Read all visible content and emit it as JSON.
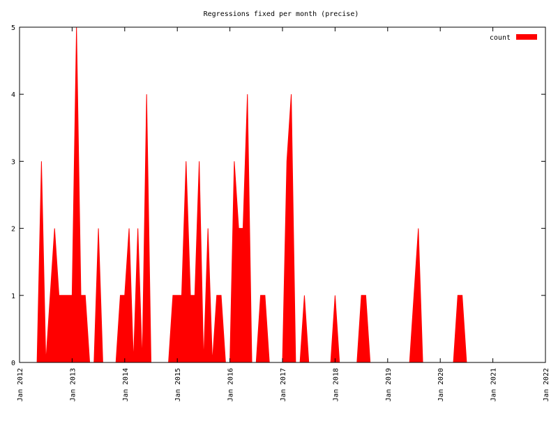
{
  "chart_data": {
    "type": "area",
    "title": "Regressions fixed per month (precise)",
    "x": [
      "2012-01",
      "2012-02",
      "2012-03",
      "2012-04",
      "2012-05",
      "2012-06",
      "2012-07",
      "2012-08",
      "2012-09",
      "2012-10",
      "2012-11",
      "2012-12",
      "2013-01",
      "2013-02",
      "2013-03",
      "2013-04",
      "2013-05",
      "2013-06",
      "2013-07",
      "2013-08",
      "2013-09",
      "2013-10",
      "2013-11",
      "2013-12",
      "2014-01",
      "2014-02",
      "2014-03",
      "2014-04",
      "2014-05",
      "2014-06",
      "2014-07",
      "2014-08",
      "2014-09",
      "2014-10",
      "2014-11",
      "2014-12",
      "2015-01",
      "2015-02",
      "2015-03",
      "2015-04",
      "2015-05",
      "2015-06",
      "2015-07",
      "2015-08",
      "2015-09",
      "2015-10",
      "2015-11",
      "2015-12",
      "2016-01",
      "2016-02",
      "2016-03",
      "2016-04",
      "2016-05",
      "2016-06",
      "2016-07",
      "2016-08",
      "2016-09",
      "2016-10",
      "2016-11",
      "2016-12",
      "2017-01",
      "2017-02",
      "2017-03",
      "2017-04",
      "2017-05",
      "2017-06",
      "2017-07",
      "2017-08",
      "2017-09",
      "2017-10",
      "2017-11",
      "2017-12",
      "2018-01",
      "2018-02",
      "2018-03",
      "2018-04",
      "2018-05",
      "2018-06",
      "2018-07",
      "2018-08",
      "2018-09",
      "2018-10",
      "2018-11",
      "2018-12",
      "2019-01",
      "2019-02",
      "2019-03",
      "2019-04",
      "2019-05",
      "2019-06",
      "2019-07",
      "2019-08",
      "2019-09",
      "2019-10",
      "2019-11",
      "2019-12",
      "2020-01",
      "2020-02",
      "2020-03",
      "2020-04",
      "2020-05",
      "2020-06",
      "2020-07",
      "2020-08",
      "2020-09",
      "2020-10",
      "2020-11",
      "2020-12",
      "2021-01",
      "2021-02",
      "2021-03",
      "2021-04",
      "2021-05",
      "2021-06",
      "2021-07",
      "2021-08",
      "2021-09",
      "2021-10",
      "2021-11",
      "2021-12"
    ],
    "series": [
      {
        "name": "count",
        "color": "#ff0000",
        "values": [
          0,
          0,
          0,
          0,
          0,
          3,
          0,
          1,
          2,
          1,
          1,
          1,
          1,
          5,
          1,
          1,
          0,
          0,
          2,
          0,
          0,
          0,
          0,
          1,
          1,
          2,
          0,
          2,
          0,
          4,
          0,
          0,
          0,
          0,
          0,
          1,
          1,
          1,
          3,
          1,
          1,
          3,
          0,
          2,
          0,
          1,
          1,
          0,
          0,
          3,
          2,
          2,
          4,
          0,
          0,
          1,
          1,
          0,
          0,
          0,
          0,
          3,
          4,
          0,
          0,
          1,
          0,
          0,
          0,
          0,
          0,
          0,
          1,
          0,
          0,
          0,
          0,
          0,
          1,
          1,
          0,
          0,
          0,
          0,
          0,
          0,
          0,
          0,
          0,
          0,
          1,
          2,
          0,
          0,
          0,
          0,
          0,
          0,
          0,
          0,
          1,
          1,
          0,
          0,
          0,
          0,
          0,
          0,
          0,
          0,
          0,
          0,
          0,
          0,
          0,
          0,
          0,
          0,
          0,
          0
        ]
      }
    ],
    "xlim": [
      "2012-01",
      "2022-01"
    ],
    "xticks": [
      {
        "value": "2012-01",
        "label": "Jan 2012"
      },
      {
        "value": "2013-01",
        "label": "Jan 2013"
      },
      {
        "value": "2014-01",
        "label": "Jan 2014"
      },
      {
        "value": "2015-01",
        "label": "Jan 2015"
      },
      {
        "value": "2016-01",
        "label": "Jan 2016"
      },
      {
        "value": "2017-01",
        "label": "Jan 2017"
      },
      {
        "value": "2018-01",
        "label": "Jan 2018"
      },
      {
        "value": "2019-01",
        "label": "Jan 2019"
      },
      {
        "value": "2020-01",
        "label": "Jan 2020"
      },
      {
        "value": "2021-01",
        "label": "Jan 2021"
      },
      {
        "value": "2022-01",
        "label": "Jan 2022"
      }
    ],
    "ylim": [
      0,
      5
    ],
    "yticks": [
      0,
      1,
      2,
      3,
      4,
      5
    ],
    "legend": "top-right"
  }
}
